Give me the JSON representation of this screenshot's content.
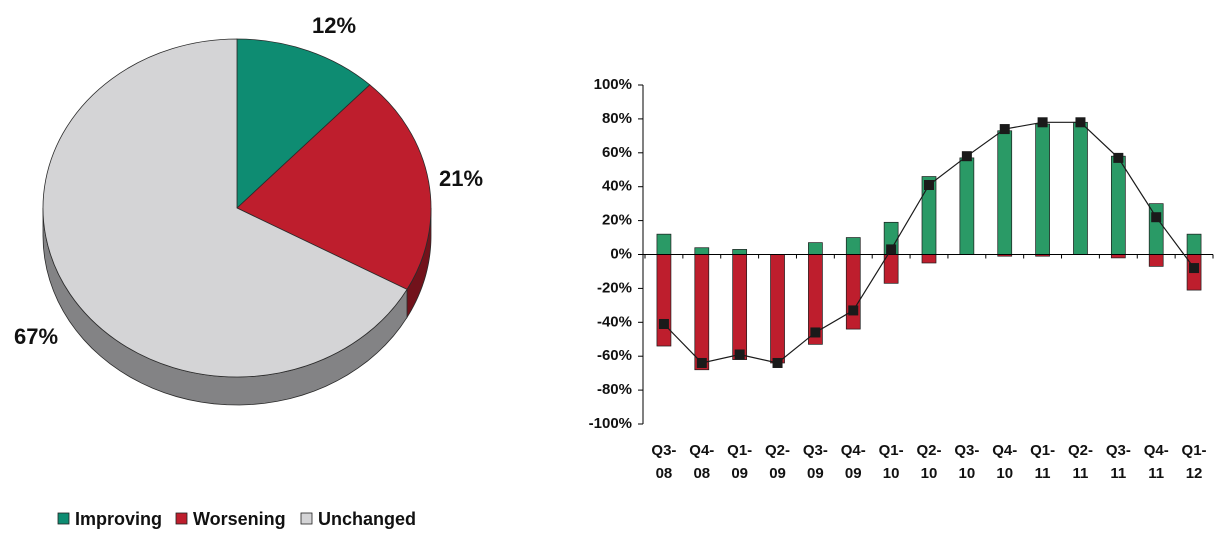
{
  "chart_data": [
    {
      "type": "pie",
      "categories": [
        "Improving",
        "Worsening",
        "Unchanged"
      ],
      "values": [
        12,
        21,
        67
      ],
      "value_labels": [
        "12%",
        "21%",
        "67%"
      ],
      "colors": [
        "#0e8c72",
        "#be1e2d",
        "#d4d4d6"
      ],
      "legend": {
        "placement": "bottom-left",
        "entries": [
          "Improving",
          "Worsening",
          "Unchanged"
        ]
      }
    },
    {
      "type": "bar",
      "categories": [
        "Q3-08",
        "Q4-08",
        "Q1-09",
        "Q2-09",
        "Q3-09",
        "Q4-09",
        "Q1-10",
        "Q2-10",
        "Q3-10",
        "Q4-10",
        "Q1-11",
        "Q2-11",
        "Q3-11",
        "Q4-11",
        "Q1-12"
      ],
      "category_lines": [
        [
          "Q3-",
          "08"
        ],
        [
          "Q4-",
          "08"
        ],
        [
          "Q1-",
          "09"
        ],
        [
          "Q2-",
          "09"
        ],
        [
          "Q3-",
          "09"
        ],
        [
          "Q4-",
          "09"
        ],
        [
          "Q1-",
          "10"
        ],
        [
          "Q2-",
          "10"
        ],
        [
          "Q3-",
          "10"
        ],
        [
          "Q4-",
          "10"
        ],
        [
          "Q1-",
          "11"
        ],
        [
          "Q2-",
          "11"
        ],
        [
          "Q3-",
          "11"
        ],
        [
          "Q4-",
          "11"
        ],
        [
          "Q1-",
          "12"
        ]
      ],
      "series": [
        {
          "type": "bar",
          "color": "#2a9a66",
          "values": [
            12,
            4,
            3,
            0,
            7,
            10,
            19,
            46,
            57,
            73,
            77,
            78,
            58,
            30,
            12
          ]
        },
        {
          "type": "bar",
          "color": "#be1e2d",
          "values": [
            -54,
            -68,
            -62,
            -64,
            -53,
            -44,
            -17,
            -5,
            0,
            -1,
            -1,
            0,
            -2,
            -7,
            -21
          ]
        },
        {
          "type": "line",
          "color": "#1a1a1a",
          "values": [
            -41,
            -64,
            -59,
            -64,
            -46,
            -33,
            3,
            41,
            58,
            74,
            78,
            78,
            57,
            22,
            -8
          ]
        }
      ],
      "yticks": [
        "100%",
        "80%",
        "60%",
        "40%",
        "20%",
        "0%",
        "-20%",
        "-40%",
        "-60%",
        "-80%",
        "-100%"
      ],
      "ylim": [
        -100,
        100
      ],
      "xlabel": "",
      "ylabel": "",
      "grid": false
    }
  ]
}
